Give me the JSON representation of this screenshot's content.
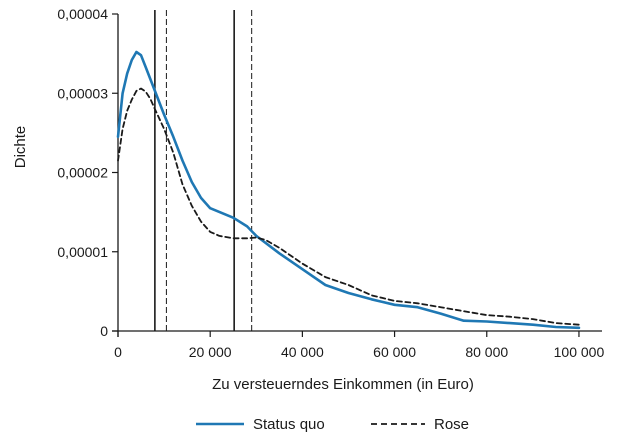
{
  "chart_data": {
    "type": "line",
    "title": "",
    "xlabel": "Zu versteuerndes Einkommen (in Euro)",
    "ylabel": "Dichte",
    "xlim": [
      0,
      105000
    ],
    "ylim": [
      0,
      4e-05
    ],
    "x_ticks": [
      0,
      20000,
      40000,
      60000,
      80000,
      100000
    ],
    "x_tick_labels": [
      "0",
      "20 000",
      "40 000",
      "60 000",
      "80 000",
      "100 000"
    ],
    "y_ticks": [
      0,
      1e-05,
      2e-05,
      3e-05,
      4e-05
    ],
    "y_tick_labels": [
      "0",
      "0,00001",
      "0,00002",
      "0,00003",
      "0,00004"
    ],
    "grid": false,
    "legend_position": "bottom",
    "series": [
      {
        "name": "Status quo",
        "color": "#1f78b4",
        "dash": "solid",
        "points": [
          [
            0,
            2.45e-05
          ],
          [
            1000,
            3e-05
          ],
          [
            2000,
            3.25e-05
          ],
          [
            3000,
            3.42e-05
          ],
          [
            4000,
            3.52e-05
          ],
          [
            5000,
            3.48e-05
          ],
          [
            6000,
            3.33e-05
          ],
          [
            8000,
            3.03e-05
          ],
          [
            10000,
            2.73e-05
          ],
          [
            12000,
            2.45e-05
          ],
          [
            14000,
            2.15e-05
          ],
          [
            16000,
            1.88e-05
          ],
          [
            18000,
            1.68e-05
          ],
          [
            20000,
            1.55e-05
          ],
          [
            25000,
            1.43e-05
          ],
          [
            28000,
            1.32e-05
          ],
          [
            30000,
            1.2e-05
          ],
          [
            35000,
            9.8e-06
          ],
          [
            40000,
            7.8e-06
          ],
          [
            45000,
            5.8e-06
          ],
          [
            50000,
            4.8e-06
          ],
          [
            55000,
            4e-06
          ],
          [
            60000,
            3.3e-06
          ],
          [
            65000,
            3e-06
          ],
          [
            70000,
            2.2e-06
          ],
          [
            75000,
            1.3e-06
          ],
          [
            80000,
            1.2e-06
          ],
          [
            85000,
            1e-06
          ],
          [
            90000,
            8e-07
          ],
          [
            95000,
            5e-07
          ],
          [
            100000,
            4e-07
          ]
        ]
      },
      {
        "name": "Rose",
        "color": "#1a1a1a",
        "dash": "dashed",
        "points": [
          [
            0,
            2.15e-05
          ],
          [
            1000,
            2.55e-05
          ],
          [
            2000,
            2.78e-05
          ],
          [
            3000,
            2.92e-05
          ],
          [
            4000,
            3.03e-05
          ],
          [
            5000,
            3.06e-05
          ],
          [
            6000,
            3.02e-05
          ],
          [
            7000,
            2.93e-05
          ],
          [
            8000,
            2.8e-05
          ],
          [
            10000,
            2.55e-05
          ],
          [
            12000,
            2.25e-05
          ],
          [
            14000,
            1.85e-05
          ],
          [
            16000,
            1.58e-05
          ],
          [
            18000,
            1.38e-05
          ],
          [
            20000,
            1.25e-05
          ],
          [
            22000,
            1.2e-05
          ],
          [
            25000,
            1.17e-05
          ],
          [
            28000,
            1.17e-05
          ],
          [
            30000,
            1.18e-05
          ],
          [
            32000,
            1.15e-05
          ],
          [
            35000,
            1.05e-05
          ],
          [
            40000,
            8.5e-06
          ],
          [
            45000,
            6.8e-06
          ],
          [
            50000,
            5.8e-06
          ],
          [
            55000,
            4.5e-06
          ],
          [
            60000,
            3.8e-06
          ],
          [
            65000,
            3.5e-06
          ],
          [
            70000,
            3e-06
          ],
          [
            75000,
            2.5e-06
          ],
          [
            80000,
            2e-06
          ],
          [
            85000,
            1.8e-06
          ],
          [
            90000,
            1.5e-06
          ],
          [
            95000,
            1e-06
          ],
          [
            100000,
            8e-07
          ]
        ]
      }
    ],
    "reference_lines": [
      {
        "x": 8000,
        "style": "solid"
      },
      {
        "x": 10500,
        "style": "dashed"
      },
      {
        "x": 25200,
        "style": "solid"
      },
      {
        "x": 29000,
        "style": "dashed"
      }
    ]
  }
}
